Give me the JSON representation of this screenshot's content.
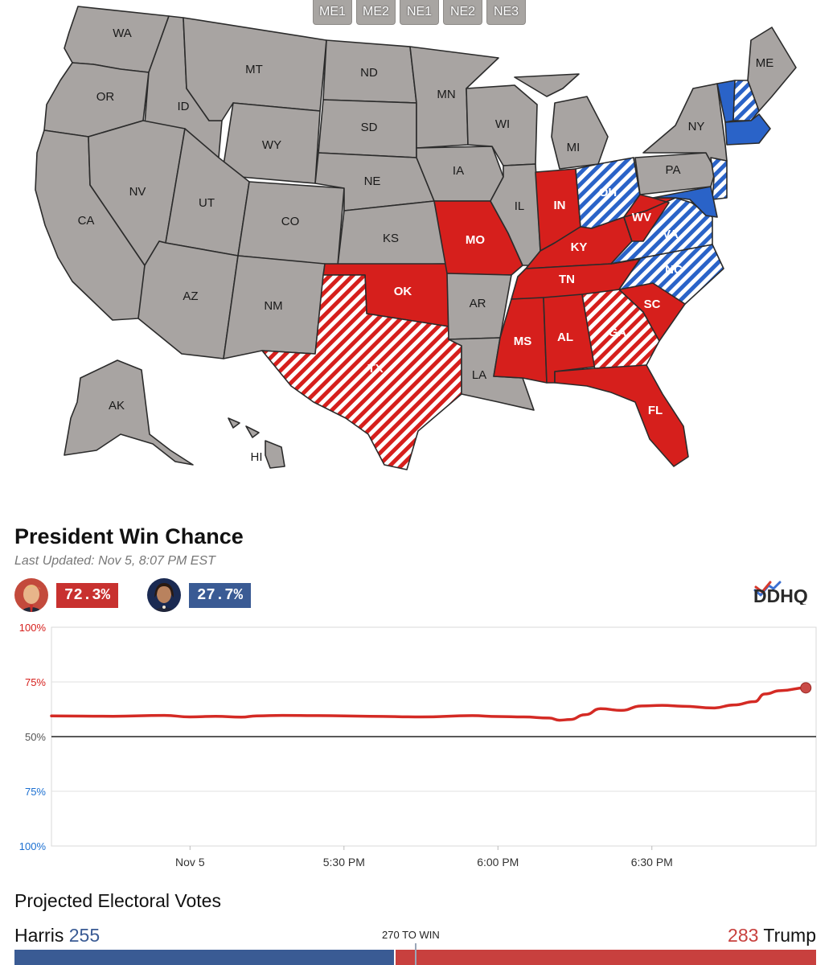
{
  "colors": {
    "gray": "#a8a4a2",
    "red": "#d61f1c",
    "blue": "#2a63c8",
    "trump_pill": "#c8312f",
    "harris_pill": "#3a5b94",
    "ev_blue": "#3a5b94",
    "ev_red": "#c8403e"
  },
  "map": {
    "district_buttons": [
      "ME1",
      "ME2",
      "NE1",
      "NE2",
      "NE3"
    ],
    "states": [
      {
        "id": "WA",
        "fill": "gray"
      },
      {
        "id": "OR",
        "fill": "gray"
      },
      {
        "id": "CA",
        "fill": "gray"
      },
      {
        "id": "ID",
        "fill": "gray"
      },
      {
        "id": "NV",
        "fill": "gray"
      },
      {
        "id": "MT",
        "fill": "gray"
      },
      {
        "id": "WY",
        "fill": "gray"
      },
      {
        "id": "UT",
        "fill": "gray"
      },
      {
        "id": "AZ",
        "fill": "gray"
      },
      {
        "id": "CO",
        "fill": "gray"
      },
      {
        "id": "NM",
        "fill": "gray"
      },
      {
        "id": "ND",
        "fill": "gray"
      },
      {
        "id": "SD",
        "fill": "gray"
      },
      {
        "id": "NE",
        "fill": "gray"
      },
      {
        "id": "KS",
        "fill": "gray"
      },
      {
        "id": "OK",
        "fill": "red"
      },
      {
        "id": "TX",
        "fill": "red-hatched"
      },
      {
        "id": "MN",
        "fill": "gray"
      },
      {
        "id": "IA",
        "fill": "gray"
      },
      {
        "id": "MO",
        "fill": "red"
      },
      {
        "id": "AR",
        "fill": "gray"
      },
      {
        "id": "LA",
        "fill": "gray"
      },
      {
        "id": "WI",
        "fill": "gray"
      },
      {
        "id": "IL",
        "fill": "gray"
      },
      {
        "id": "MI",
        "fill": "gray"
      },
      {
        "id": "IN",
        "fill": "red"
      },
      {
        "id": "OH",
        "fill": "blue-hatched"
      },
      {
        "id": "KY",
        "fill": "red"
      },
      {
        "id": "TN",
        "fill": "red"
      },
      {
        "id": "MS",
        "fill": "red"
      },
      {
        "id": "AL",
        "fill": "red"
      },
      {
        "id": "GA",
        "fill": "red-hatched"
      },
      {
        "id": "FL",
        "fill": "red"
      },
      {
        "id": "SC",
        "fill": "red"
      },
      {
        "id": "NC",
        "fill": "blue-hatched"
      },
      {
        "id": "VA",
        "fill": "blue-hatched"
      },
      {
        "id": "WV",
        "fill": "red"
      },
      {
        "id": "PA",
        "fill": "gray"
      },
      {
        "id": "NY",
        "fill": "gray"
      },
      {
        "id": "ME",
        "fill": "gray"
      },
      {
        "id": "NJ",
        "fill": "blue-hatched"
      },
      {
        "id": "MD",
        "fill": "blue"
      },
      {
        "id": "VT",
        "fill": "blue"
      },
      {
        "id": "NH",
        "fill": "blue-hatched"
      },
      {
        "id": "MA",
        "fill": "blue"
      },
      {
        "id": "AK",
        "fill": "gray"
      },
      {
        "id": "HI",
        "fill": "gray"
      }
    ]
  },
  "win_chance": {
    "title": "President Win Chance",
    "last_updated": "Last Updated: Nov 5, 8:07 PM EST",
    "trump_pct": "72.3%",
    "harris_pct": "27.7%",
    "brand": "DDHQ"
  },
  "chart_data": {
    "type": "line",
    "y_tick_labels": [
      "100%",
      "75%",
      "50%",
      "75%",
      "100%"
    ],
    "x_tick_labels": [
      "Nov 5",
      "5:30 PM",
      "6:00 PM",
      "6:30 PM"
    ],
    "x_ticks_minutes": [
      0,
      30,
      60,
      90
    ],
    "x_range_minutes": [
      -27,
      122
    ],
    "y_range_trump_pct": [
      0,
      100
    ],
    "grid": true,
    "series": [
      {
        "color": "#d42a24",
        "x_minutes": [
          -27,
          -15,
          -5,
          0,
          5,
          10,
          13,
          18,
          25,
          35,
          45,
          55,
          60,
          65,
          70,
          72,
          74,
          77,
          80,
          84,
          88,
          92,
          96,
          102,
          106,
          110,
          112,
          115,
          120
        ],
        "y_pct": [
          59.5,
          59.3,
          59.7,
          59.0,
          59.3,
          58.9,
          59.5,
          59.7,
          59.6,
          59.3,
          59.0,
          59.6,
          59.2,
          59.0,
          58.5,
          57.5,
          57.8,
          60.0,
          62.8,
          62.0,
          64.0,
          64.3,
          63.9,
          63.1,
          64.5,
          66.0,
          69.5,
          71.0,
          72.3
        ]
      }
    ]
  },
  "electoral": {
    "title": "Projected Electoral Votes",
    "harris_name": "Harris",
    "harris_votes": "255",
    "trump_votes": "283",
    "trump_name": "Trump",
    "to_win": "270 TO WIN",
    "harris_ev": 255,
    "trump_ev": 283,
    "total_ev": 538
  }
}
